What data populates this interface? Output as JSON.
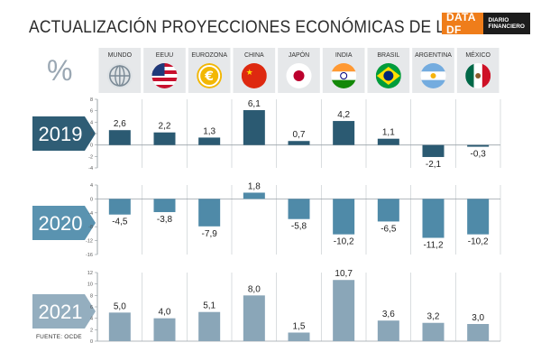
{
  "header": {
    "title": "ACTUALIZACIÓN PROYECCIONES ECONÓMICAS DE LA OCDE",
    "brand_main": "DATA DF",
    "brand_sub_1": "DIARIO",
    "brand_sub_2": "FINANCIERO",
    "unit_symbol": "%"
  },
  "footer": {
    "source": "FUENTE: OCDE"
  },
  "colors": {
    "y2019": "#2b5a72",
    "y2020": "#4f8aa8",
    "y2021": "#8aa6b8",
    "label2019": "#2f5d75",
    "label2020": "#5a93b0",
    "label2021": "#94aebf"
  },
  "chart_data": {
    "type": "bar",
    "title": "ACTUALIZACIÓN PROYECCIONES ECONÓMICAS DE LA OCDE",
    "categories": [
      "MUNDO",
      "EEUU",
      "EUROZONA",
      "CHINA",
      "JAPÓN",
      "INDIA",
      "BRASIL",
      "ARGENTINA",
      "MÉXICO"
    ],
    "flag_icons": [
      "globe-icon",
      "usa-flag-icon",
      "euro-coin-icon",
      "china-flag-icon",
      "japan-flag-icon",
      "india-flag-icon",
      "brazil-flag-icon",
      "argentina-flag-icon",
      "mexico-flag-icon"
    ],
    "series": [
      {
        "name": "2019",
        "values": [
          2.6,
          2.2,
          1.3,
          6.1,
          0.7,
          4.2,
          1.1,
          -2.1,
          -0.3
        ],
        "labels": [
          "2,6",
          "2,2",
          "1,3",
          "6,1",
          "0,7",
          "4,2",
          "1,1",
          "-2,1",
          "-0,3"
        ],
        "ylim": [
          -4,
          8
        ],
        "ticks": [
          8,
          6,
          4,
          2,
          0,
          -2,
          -4
        ]
      },
      {
        "name": "2020",
        "values": [
          -4.5,
          -3.8,
          -7.9,
          1.8,
          -5.8,
          -10.2,
          -6.5,
          -11.2,
          -10.2
        ],
        "labels": [
          "-4,5",
          "-3,8",
          "-7,9",
          "1,8",
          "-5,8",
          "-10,2",
          "-6,5",
          "-11,2",
          "-10,2"
        ],
        "ylim": [
          -16,
          4
        ],
        "ticks": [
          4,
          0,
          -4,
          -8,
          -12,
          -16
        ]
      },
      {
        "name": "2021",
        "values": [
          5.0,
          4.0,
          5.1,
          8.0,
          1.5,
          10.7,
          3.6,
          3.2,
          3.0
        ],
        "labels": [
          "5,0",
          "4,0",
          "5,1",
          "8,0",
          "1,5",
          "10,7",
          "3,6",
          "3,2",
          "3,0"
        ],
        "ylim": [
          0,
          12
        ],
        "ticks": [
          12,
          10,
          8,
          6,
          4,
          2,
          0
        ]
      }
    ],
    "xlabel": "",
    "ylabel": "%"
  }
}
